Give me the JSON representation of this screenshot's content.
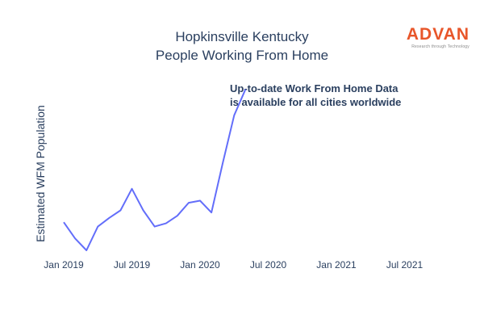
{
  "logo": {
    "name": "ADVAN",
    "tagline": "Research through Technology",
    "color": "#e8562a"
  },
  "chart_data": {
    "type": "line",
    "title_lines": [
      "Hopkinsville Kentucky",
      "People Working From Home"
    ],
    "xlabel": "",
    "ylabel": "Estimated WFM Population",
    "x_ticks": [
      "Jan 2019",
      "Jul 2019",
      "Jan 2020",
      "Jul 2020",
      "Jan 2021",
      "Jul 2021"
    ],
    "y_ticks_shown": false,
    "grid": false,
    "series": [
      {
        "color": "#636efa",
        "x": [
          "2019-01",
          "2019-02",
          "2019-03",
          "2019-04",
          "2019-05",
          "2019-06",
          "2019-07",
          "2019-08",
          "2019-09",
          "2019-10",
          "2019-11",
          "2019-12",
          "2020-01",
          "2020-02",
          "2020-03",
          "2020-04",
          "2020-05"
        ],
        "y": [
          29,
          14,
          3,
          25,
          33,
          40,
          60,
          40,
          25,
          28,
          35,
          47,
          49,
          38,
          84,
          128,
          152
        ]
      }
    ],
    "annotation_lines": [
      "Up-to-date Work From Home Data",
      "is available for all cities worldwide"
    ]
  }
}
